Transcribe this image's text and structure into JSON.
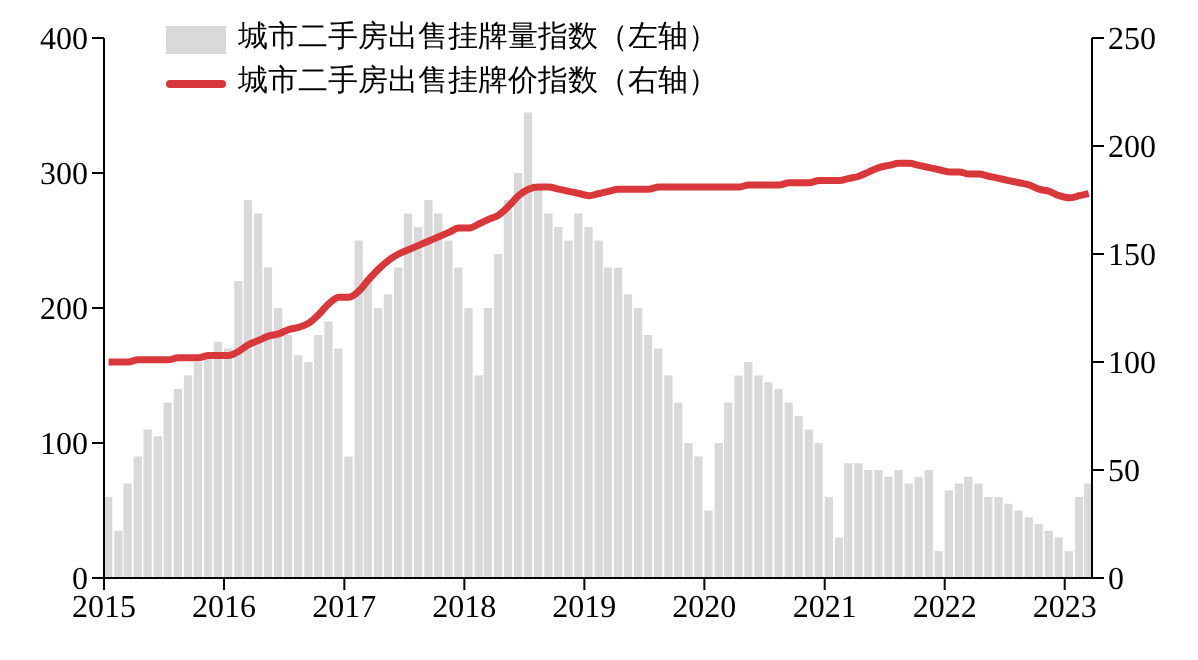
{
  "chart_data": {
    "type": "bar",
    "legend": "top left",
    "grid": false,
    "x": [
      "2015-01-15",
      "2015-02-15",
      "2015-03-15",
      "2015-04-15",
      "2015-05-15",
      "2015-06-15",
      "2015-07-15",
      "2015-08-15",
      "2015-09-15",
      "2015-10-15",
      "2015-11-15",
      "2015-12-15",
      "2016-01-15",
      "2016-02-15",
      "2016-03-15",
      "2016-04-15",
      "2016-05-15",
      "2016-06-15",
      "2016-07-15",
      "2016-08-15",
      "2016-09-15",
      "2016-10-15",
      "2016-11-15",
      "2016-12-15",
      "2017-01-15",
      "2017-02-15",
      "2017-03-15",
      "2017-04-15",
      "2017-05-15",
      "2017-06-15",
      "2017-07-15",
      "2017-08-15",
      "2017-09-15",
      "2017-10-15",
      "2017-11-15",
      "2017-12-15",
      "2018-01-15",
      "2018-02-15",
      "2018-03-15",
      "2018-04-15",
      "2018-05-15",
      "2018-06-15",
      "2018-07-15",
      "2018-08-15",
      "2018-09-15",
      "2018-10-15",
      "2018-11-15",
      "2018-12-15",
      "2019-01-15",
      "2019-02-15",
      "2019-03-15",
      "2019-04-15",
      "2019-05-15",
      "2019-06-15",
      "2019-07-15",
      "2019-08-15",
      "2019-09-15",
      "2019-10-15",
      "2019-11-15",
      "2019-12-15",
      "2020-01-15",
      "2020-02-15",
      "2020-03-15",
      "2020-04-15",
      "2020-05-15",
      "2020-06-15",
      "2020-07-15",
      "2020-08-15",
      "2020-09-15",
      "2020-10-15",
      "2020-11-15",
      "2020-12-15",
      "2021-01-15",
      "2021-02-15",
      "2021-03-15",
      "2021-04-15",
      "2021-05-15",
      "2021-06-15",
      "2021-07-15",
      "2021-08-15",
      "2021-09-15",
      "2021-10-15",
      "2021-11-15",
      "2021-12-15",
      "2022-01-15",
      "2022-02-15",
      "2022-03-15",
      "2022-04-15",
      "2022-05-15",
      "2022-06-15",
      "2022-07-15",
      "2022-08-15",
      "2022-09-15",
      "2022-10-15",
      "2022-11-15",
      "2022-12-15",
      "2023-01-15",
      "2023-02-15",
      "2023-03-15"
    ],
    "series": [
      {
        "name": "城市二手房出售挂牌量指数（左轴）",
        "color": "#d9d9d9",
        "values": [
          60,
          35,
          70,
          90,
          110,
          105,
          130,
          140,
          150,
          160,
          165,
          175,
          170,
          220,
          280,
          270,
          230,
          200,
          180,
          165,
          160,
          180,
          190,
          170,
          90,
          250,
          220,
          200,
          210,
          230,
          270,
          260,
          280,
          270,
          250,
          230,
          200,
          150,
          200,
          240,
          280,
          300,
          345,
          290,
          270,
          260,
          250,
          270,
          260,
          250,
          230,
          230,
          210,
          200,
          180,
          170,
          150,
          130,
          100,
          90,
          50,
          100,
          130,
          150,
          160,
          150,
          145,
          140,
          130,
          120,
          110,
          100,
          60,
          30,
          85,
          85,
          80,
          80,
          75,
          80,
          70,
          75,
          80,
          20,
          65,
          70,
          75,
          70,
          60,
          60,
          55,
          50,
          45,
          40,
          35,
          30,
          20,
          60,
          70
        ]
      },
      {
        "name": "城市二手房出售挂牌价指数（右轴）",
        "type": "line",
        "axis": "y2",
        "color": "#d9383a",
        "values": [
          100,
          100,
          100,
          101,
          101,
          101,
          101,
          102,
          102,
          102,
          103,
          103,
          103,
          105,
          108,
          110,
          112,
          113,
          115,
          116,
          118,
          122,
          127,
          130,
          130,
          133,
          138,
          143,
          147,
          150,
          152,
          154,
          156,
          158,
          160,
          162,
          162,
          164,
          166,
          168,
          172,
          177,
          180,
          181,
          181,
          180,
          179,
          178,
          177,
          178,
          179,
          180,
          180,
          180,
          180,
          181,
          181,
          181,
          181,
          181,
          181,
          181,
          181,
          181,
          182,
          182,
          182,
          182,
          183,
          183,
          183,
          184,
          184,
          184,
          185,
          186,
          188,
          190,
          191,
          192,
          192,
          191,
          190,
          189,
          188,
          188,
          187,
          187,
          186,
          185,
          184,
          183,
          182,
          180,
          179,
          177,
          176,
          177,
          178
        ]
      }
    ],
    "xlim": [
      "2015-01-01",
      "2023-03-25"
    ],
    "xticks": [
      "2015",
      "2016",
      "2017",
      "2018",
      "2019",
      "2020",
      "2021",
      "2022",
      "2023"
    ],
    "ylim": [
      0,
      400
    ],
    "yticks": [
      0,
      100,
      200,
      300,
      400
    ],
    "y2lim": [
      0,
      250
    ],
    "y2ticks": [
      0,
      50,
      100,
      150,
      200,
      250
    ]
  }
}
